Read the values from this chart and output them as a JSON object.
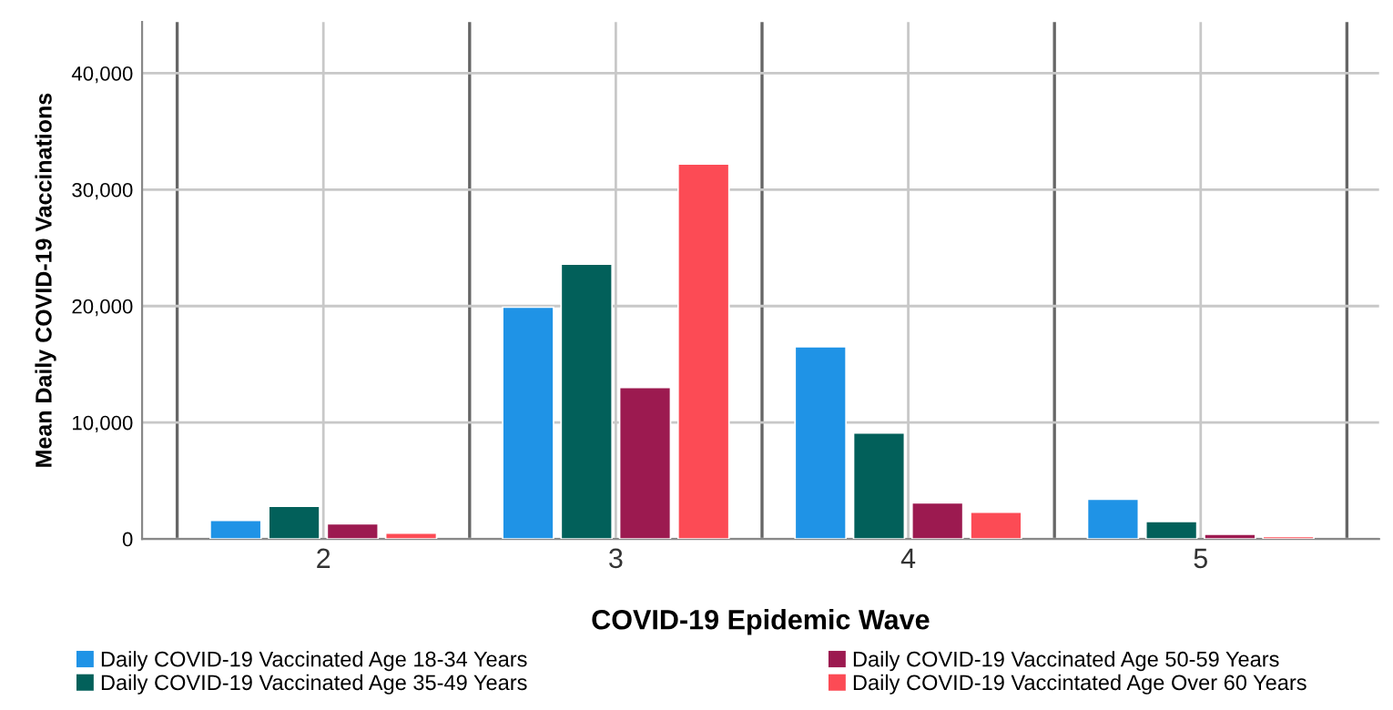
{
  "chart_data": {
    "type": "bar",
    "xlabel": "COVID-19 Epidemic Wave",
    "ylabel": "Mean Daily COVID-19 Vaccinations",
    "categories": [
      "2",
      "3",
      "4",
      "5"
    ],
    "series": [
      {
        "name": "Daily COVID-19 Vaccinated Age 18-34 Years",
        "color": "#1f93e6",
        "values": [
          1600,
          19900,
          16500,
          3400
        ]
      },
      {
        "name": "Daily COVID-19 Vaccinated Age 35-49 Years",
        "color": "#02605a",
        "values": [
          2800,
          23600,
          9100,
          1500
        ]
      },
      {
        "name": "Daily COVID-19 Vaccinated Age 50-59 Years",
        "color": "#9c1a50",
        "values": [
          1300,
          13000,
          3100,
          400
        ]
      },
      {
        "name": "Daily COVID-19 Vaccintated Age Over 60 Years",
        "color": "#fc4b55",
        "values": [
          500,
          32200,
          2300,
          200
        ]
      }
    ],
    "ylim": [
      0,
      44400
    ],
    "yticks": [
      {
        "value": 0,
        "label": "0"
      },
      {
        "value": 10000,
        "label": "10,000"
      },
      {
        "value": 20000,
        "label": "20,000"
      },
      {
        "value": 30000,
        "label": "30,000"
      },
      {
        "value": 40000,
        "label": "40,000"
      }
    ],
    "grid": true,
    "legend": "bottom"
  }
}
